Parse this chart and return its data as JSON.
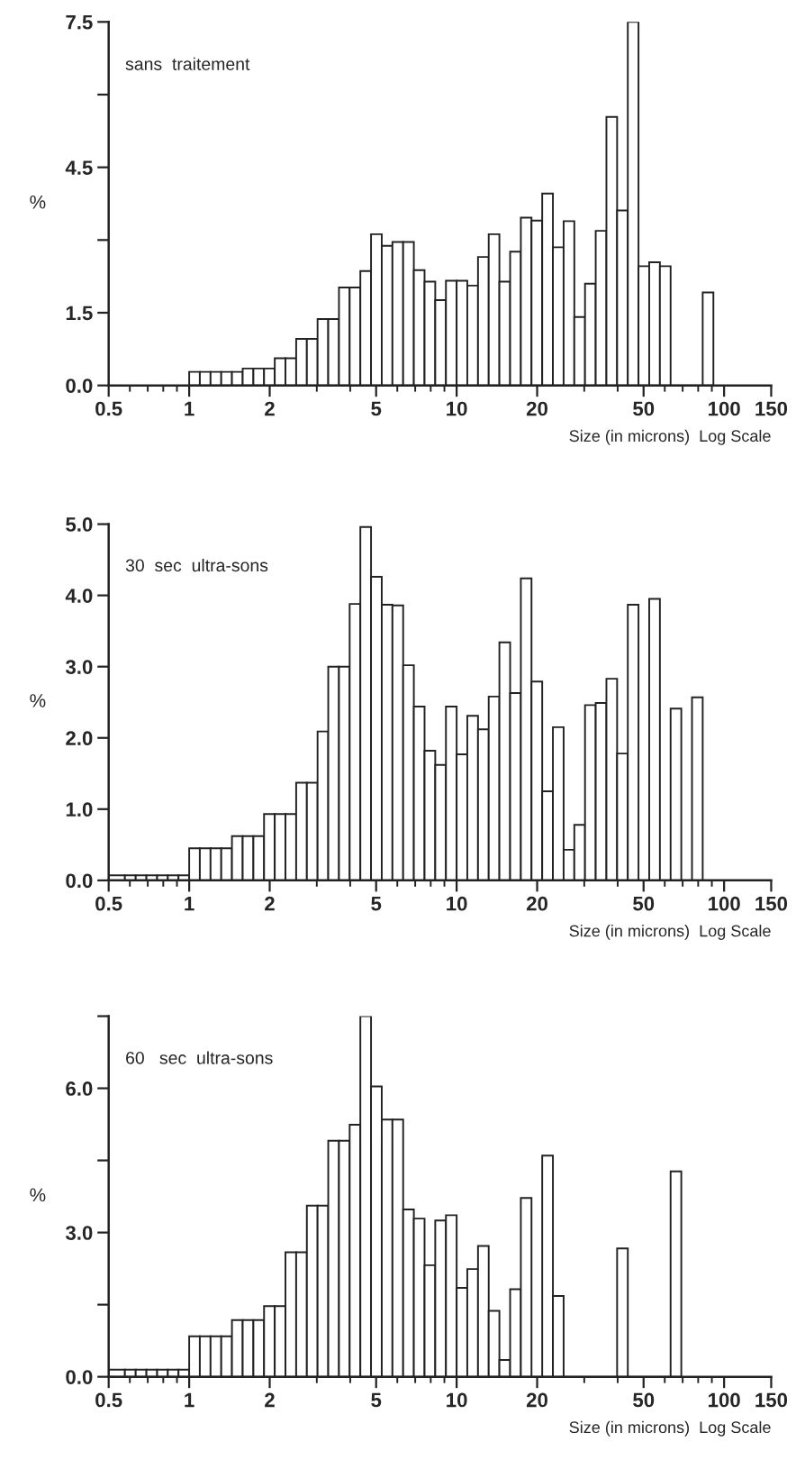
{
  "chart_data": [
    {
      "type": "histogram",
      "annotations": [
        "sans  traitement"
      ],
      "xlabel": "Size (in microns)  Log Scale",
      "ylabel": "%",
      "log": "x",
      "bins": [
        1,
        1.096,
        1.202,
        1.318,
        1.445,
        1.585,
        1.738,
        1.905,
        2.089,
        2.291,
        2.512,
        2.754,
        3.02,
        3.311,
        3.631,
        3.981,
        4.365,
        4.786,
        5.248,
        5.754,
        6.31,
        6.918,
        7.586,
        8.318,
        9.12,
        10,
        10.96,
        12.02,
        13.18,
        14.45,
        15.85,
        17.38,
        19.05,
        20.89,
        22.91,
        25.12,
        27.54,
        30.2,
        33.11,
        36.31,
        39.81,
        43.65,
        47.86,
        52.48,
        57.54,
        63.1,
        69.18,
        75.86,
        83.18,
        91.2
      ],
      "values": [
        0.28,
        0.28,
        0.28,
        0.28,
        0.28,
        0.35,
        0.35,
        0.35,
        0.56,
        0.56,
        0.96,
        0.96,
        1.37,
        1.37,
        2.02,
        2.02,
        2.36,
        3.12,
        2.88,
        2.96,
        2.96,
        2.38,
        2.14,
        1.76,
        2.16,
        2.16,
        2.06,
        2.65,
        3.12,
        2.14,
        2.76,
        3.46,
        3.4,
        3.96,
        2.85,
        3.39,
        1.41,
        2.1,
        3.19,
        5.54,
        3.61,
        7.5,
        2.46,
        2.54,
        2.46,
        0,
        0,
        0,
        1.92
      ],
      "xlim": [
        0.5,
        150
      ],
      "xticks": [
        {
          "value": 0.5,
          "label": "0.5"
        },
        {
          "value": 0.6,
          "label": null
        },
        {
          "value": 0.7,
          "label": null
        },
        {
          "value": 0.8,
          "label": null
        },
        {
          "value": 0.9,
          "label": null
        },
        {
          "value": 1,
          "label": "1"
        },
        {
          "value": 2,
          "label": "2"
        },
        {
          "value": 3,
          "label": null
        },
        {
          "value": 4,
          "label": null
        },
        {
          "value": 5,
          "label": "5"
        },
        {
          "value": 6,
          "label": null
        },
        {
          "value": 7,
          "label": null
        },
        {
          "value": 8,
          "label": null
        },
        {
          "value": 9,
          "label": null
        },
        {
          "value": 10,
          "label": "10"
        },
        {
          "value": 20,
          "label": "20"
        },
        {
          "value": 30,
          "label": null
        },
        {
          "value": 40,
          "label": null
        },
        {
          "value": 50,
          "label": "50"
        },
        {
          "value": 60,
          "label": null
        },
        {
          "value": 70,
          "label": null
        },
        {
          "value": 80,
          "label": null
        },
        {
          "value": 90,
          "label": null
        },
        {
          "value": 100,
          "label": "100"
        },
        {
          "value": 150,
          "label": "150"
        }
      ],
      "ylim": [
        0,
        7.5
      ],
      "yticks": [
        {
          "value": 0,
          "label": "0.0"
        },
        {
          "value": 1.5,
          "label": "1.5"
        },
        {
          "value": 3.0,
          "label": null
        },
        {
          "value": 4.5,
          "label": "4.5"
        },
        {
          "value": 6.0,
          "label": null
        },
        {
          "value": 7.5,
          "label": "7.5"
        }
      ]
    },
    {
      "type": "histogram",
      "annotations": [
        "30  sec  ultra-sons"
      ],
      "xlabel": "Size (in microns)  Log Scale",
      "ylabel": "%",
      "log": "x",
      "bins": [
        0.5,
        0.575,
        0.631,
        0.692,
        0.759,
        0.832,
        0.912,
        1,
        1.096,
        1.202,
        1.318,
        1.445,
        1.585,
        1.738,
        1.905,
        2.089,
        2.291,
        2.512,
        2.754,
        3.02,
        3.311,
        3.631,
        3.981,
        4.365,
        4.786,
        5.248,
        5.754,
        6.31,
        6.918,
        7.586,
        8.318,
        9.12,
        10,
        10.96,
        12.02,
        13.18,
        14.45,
        15.85,
        17.38,
        19.05,
        20.89,
        22.91,
        25.12,
        27.54,
        30.2,
        33.11,
        36.31,
        39.81,
        43.65,
        47.86,
        52.48,
        57.54,
        63.1,
        69.18,
        75.86,
        83.18
      ],
      "values": [
        0.07,
        0.07,
        0.07,
        0.07,
        0.07,
        0.07,
        0.07,
        0.45,
        0.45,
        0.45,
        0.45,
        0.62,
        0.62,
        0.62,
        0.93,
        0.93,
        0.93,
        1.37,
        1.37,
        2.09,
        3.0,
        3.0,
        3.88,
        4.96,
        4.26,
        3.87,
        3.86,
        3.02,
        2.44,
        1.82,
        1.62,
        2.44,
        1.77,
        2.31,
        2.12,
        2.58,
        3.34,
        2.63,
        4.24,
        2.79,
        1.25,
        2.15,
        0.43,
        0.78,
        2.46,
        2.49,
        2.83,
        1.78,
        3.87,
        0,
        3.95,
        0,
        2.41,
        0,
        2.57
      ],
      "xlim": [
        0.5,
        150
      ],
      "xticks": [
        {
          "value": 0.5,
          "label": "0.5"
        },
        {
          "value": 0.6,
          "label": null
        },
        {
          "value": 0.7,
          "label": null
        },
        {
          "value": 0.8,
          "label": null
        },
        {
          "value": 0.9,
          "label": null
        },
        {
          "value": 1,
          "label": "1"
        },
        {
          "value": 2,
          "label": "2"
        },
        {
          "value": 3,
          "label": null
        },
        {
          "value": 4,
          "label": null
        },
        {
          "value": 5,
          "label": "5"
        },
        {
          "value": 6,
          "label": null
        },
        {
          "value": 7,
          "label": null
        },
        {
          "value": 8,
          "label": null
        },
        {
          "value": 9,
          "label": null
        },
        {
          "value": 10,
          "label": "10"
        },
        {
          "value": 20,
          "label": "20"
        },
        {
          "value": 30,
          "label": null
        },
        {
          "value": 40,
          "label": null
        },
        {
          "value": 50,
          "label": "50"
        },
        {
          "value": 60,
          "label": null
        },
        {
          "value": 70,
          "label": null
        },
        {
          "value": 80,
          "label": null
        },
        {
          "value": 90,
          "label": null
        },
        {
          "value": 100,
          "label": "100"
        },
        {
          "value": 150,
          "label": "150"
        }
      ],
      "ylim": [
        0,
        5.0
      ],
      "yticks": [
        {
          "value": 0,
          "label": "0.0"
        },
        {
          "value": 1.0,
          "label": "1.0"
        },
        {
          "value": 2.0,
          "label": "2.0"
        },
        {
          "value": 3.0,
          "label": "3.0"
        },
        {
          "value": 4.0,
          "label": "4.0"
        },
        {
          "value": 5.0,
          "label": "5.0"
        }
      ]
    },
    {
      "type": "histogram",
      "annotations": [
        "60   sec  ultra-sons"
      ],
      "xlabel": "Size (in microns)  Log Scale",
      "ylabel": "%",
      "log": "x",
      "bins": [
        0.5,
        0.575,
        0.631,
        0.692,
        0.759,
        0.832,
        0.912,
        1,
        1.096,
        1.202,
        1.318,
        1.445,
        1.585,
        1.738,
        1.905,
        2.089,
        2.291,
        2.512,
        2.754,
        3.02,
        3.311,
        3.631,
        3.981,
        4.365,
        4.786,
        5.248,
        5.754,
        6.31,
        6.918,
        7.586,
        8.318,
        9.12,
        10,
        10.96,
        12.02,
        13.18,
        14.45,
        15.85,
        17.38,
        19.05,
        20.89,
        22.91,
        25.12,
        27.54,
        30.2,
        33.11,
        36.31,
        39.81,
        43.65,
        47.86,
        52.48,
        57.54,
        63.1,
        69.18
      ],
      "values": [
        0.15,
        0.15,
        0.15,
        0.15,
        0.15,
        0.15,
        0.15,
        0.84,
        0.84,
        0.84,
        0.84,
        1.18,
        1.18,
        1.18,
        1.47,
        1.47,
        2.59,
        2.59,
        3.56,
        3.56,
        4.91,
        4.91,
        5.24,
        7.5,
        6.04,
        5.35,
        5.35,
        3.48,
        3.29,
        2.32,
        3.25,
        3.36,
        1.85,
        2.24,
        2.72,
        1.37,
        0.35,
        1.82,
        3.72,
        0,
        4.6,
        1.68,
        0,
        0,
        0,
        0,
        0,
        2.67,
        0,
        0,
        0,
        0,
        4.27
      ],
      "xlim": [
        0.5,
        150
      ],
      "xticks": [
        {
          "value": 0.5,
          "label": "0.5"
        },
        {
          "value": 0.6,
          "label": null
        },
        {
          "value": 0.7,
          "label": null
        },
        {
          "value": 0.8,
          "label": null
        },
        {
          "value": 0.9,
          "label": null
        },
        {
          "value": 1,
          "label": "1"
        },
        {
          "value": 2,
          "label": "2"
        },
        {
          "value": 3,
          "label": null
        },
        {
          "value": 4,
          "label": null
        },
        {
          "value": 5,
          "label": "5"
        },
        {
          "value": 6,
          "label": null
        },
        {
          "value": 7,
          "label": null
        },
        {
          "value": 8,
          "label": null
        },
        {
          "value": 9,
          "label": null
        },
        {
          "value": 10,
          "label": "10"
        },
        {
          "value": 20,
          "label": "20"
        },
        {
          "value": 30,
          "label": null
        },
        {
          "value": 40,
          "label": null
        },
        {
          "value": 50,
          "label": "50"
        },
        {
          "value": 60,
          "label": null
        },
        {
          "value": 70,
          "label": null
        },
        {
          "value": 80,
          "label": null
        },
        {
          "value": 90,
          "label": null
        },
        {
          "value": 100,
          "label": "100"
        },
        {
          "value": 150,
          "label": "150"
        }
      ],
      "ylim": [
        0,
        7.5
      ],
      "yticks": [
        {
          "value": 0,
          "label": "0.0"
        },
        {
          "value": 1.5,
          "label": null
        },
        {
          "value": 3.0,
          "label": "3.0"
        },
        {
          "value": 4.5,
          "label": null
        },
        {
          "value": 6.0,
          "label": "6.0"
        },
        {
          "value": 7.5,
          "label": null
        }
      ]
    }
  ]
}
